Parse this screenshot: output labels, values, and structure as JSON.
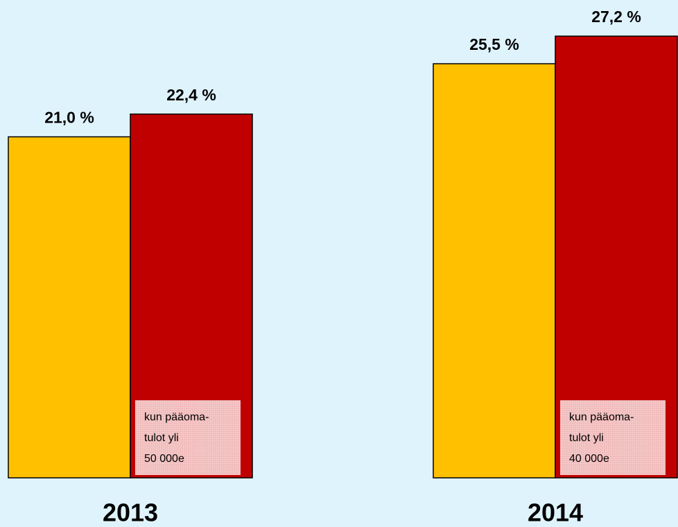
{
  "chart_data": {
    "type": "bar",
    "categories": [
      "2013",
      "2014"
    ],
    "series": [
      {
        "color": "#ffc000",
        "values": [
          21.0,
          25.5
        ],
        "value_labels": [
          "21,0 %",
          "25,5 %"
        ]
      },
      {
        "color": "#c00000",
        "values": [
          22.4,
          27.2
        ],
        "value_labels": [
          "22,4 %",
          "27,2 %"
        ]
      }
    ],
    "notes": [
      [
        "kun pääoma-",
        "tulot yli",
        "50 000e"
      ],
      [
        "kun pääoma-",
        "tulot yli",
        "40 000e"
      ]
    ]
  }
}
